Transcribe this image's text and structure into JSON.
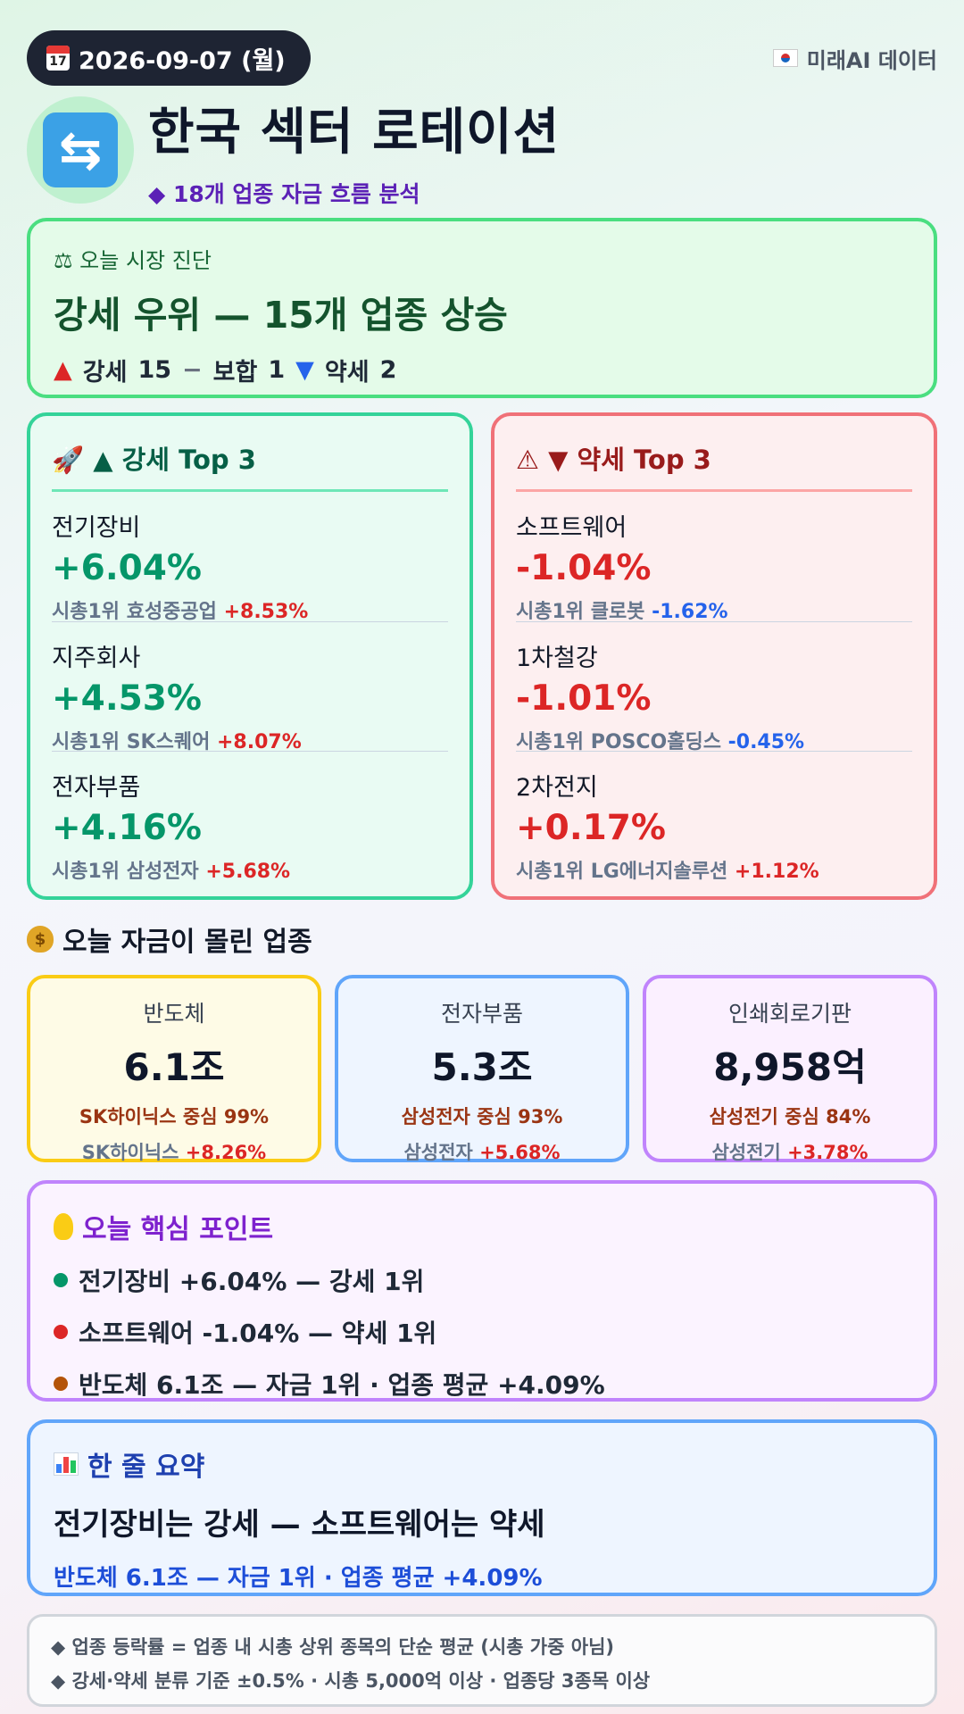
{
  "header": {
    "date": "2026-09-07 (월)",
    "source": "미래AI 데이터",
    "title": "한국 섹터 로테이션",
    "subtitle": "18개 업종 자금 흐름 분석",
    "icons": {
      "date": "calendar-icon",
      "source": "korea-flag-icon",
      "title": "rotate-arrows-icon"
    }
  },
  "diagnosis": {
    "label": "오늘 시장 진단",
    "headline": "강세 우위 — 15개 업종 상승",
    "counts": [
      {
        "symbol": "▲",
        "label": "강세",
        "value": "15"
      },
      {
        "symbol": "−",
        "label": "보합",
        "value": "1"
      },
      {
        "symbol": "▼",
        "label": "약세",
        "value": "2"
      }
    ]
  },
  "strong_top3": {
    "title": "▲ 강세 Top 3",
    "items": [
      {
        "name": "전기장비",
        "pct": "+6.04%",
        "leader_prefix": "시총1위",
        "leader": "효성중공업",
        "leader_pct": "+8.53%"
      },
      {
        "name": "지주회사",
        "pct": "+4.53%",
        "leader_prefix": "시총1위",
        "leader": "SK스퀘어",
        "leader_pct": "+8.07%"
      },
      {
        "name": "전자부품",
        "pct": "+4.16%",
        "leader_prefix": "시총1위",
        "leader": "삼성전자",
        "leader_pct": "+5.68%"
      }
    ]
  },
  "weak_top3": {
    "title": "▼ 약세 Top 3",
    "items": [
      {
        "name": "소프트웨어",
        "pct": "-1.04%",
        "leader_prefix": "시총1위",
        "leader": "클로봇",
        "leader_pct": "-1.62%"
      },
      {
        "name": "1차철강",
        "pct": "-1.01%",
        "leader_prefix": "시총1위",
        "leader": "POSCO홀딩스",
        "leader_pct": "-0.45%"
      },
      {
        "name": "2차전지",
        "pct": "+0.17%",
        "leader_prefix": "시총1위",
        "leader": "LG에너지솔루션",
        "leader_pct": "+1.12%"
      }
    ]
  },
  "money": {
    "title": "오늘 자금이 몰린 업종",
    "cards": [
      {
        "name": "반도체",
        "amount": "6.1조",
        "concentration": "SK하이닉스 중심 99%",
        "leader": "SK하이닉스",
        "leader_pct": "+8.26%"
      },
      {
        "name": "전자부품",
        "amount": "5.3조",
        "concentration": "삼성전자 중심 93%",
        "leader": "삼성전자",
        "leader_pct": "+5.68%"
      },
      {
        "name": "인쇄회로기판",
        "amount": "8,958억",
        "concentration": "삼성전기 중심 84%",
        "leader": "삼성전기",
        "leader_pct": "+3.78%"
      }
    ]
  },
  "key_points": {
    "title": "오늘 핵심 포인트",
    "items": [
      {
        "text": "전기장비 +6.04% — 강세 1위",
        "color": "#059669"
      },
      {
        "text": "소프트웨어 -1.04% — 약세 1위",
        "color": "#dc2626"
      },
      {
        "text": "반도체 6.1조 — 자금 1위 · 업종 평균 +4.09%",
        "color": "#b45309"
      }
    ]
  },
  "summary": {
    "title": "한 줄 요약",
    "headline": "전기장비는 강세 — 소프트웨어는 약세",
    "sub": "반도체 6.1조 — 자금 1위 · 업종 평균 +4.09%"
  },
  "notes": [
    "업종 등락률 = 업종 내 시총 상위 종목의 단순 평균 (시총 가중 아님)",
    "강세·약세 분류 기준 ±0.5% · 시총 5,000억 이상 · 업종당 3종목 이상"
  ]
}
